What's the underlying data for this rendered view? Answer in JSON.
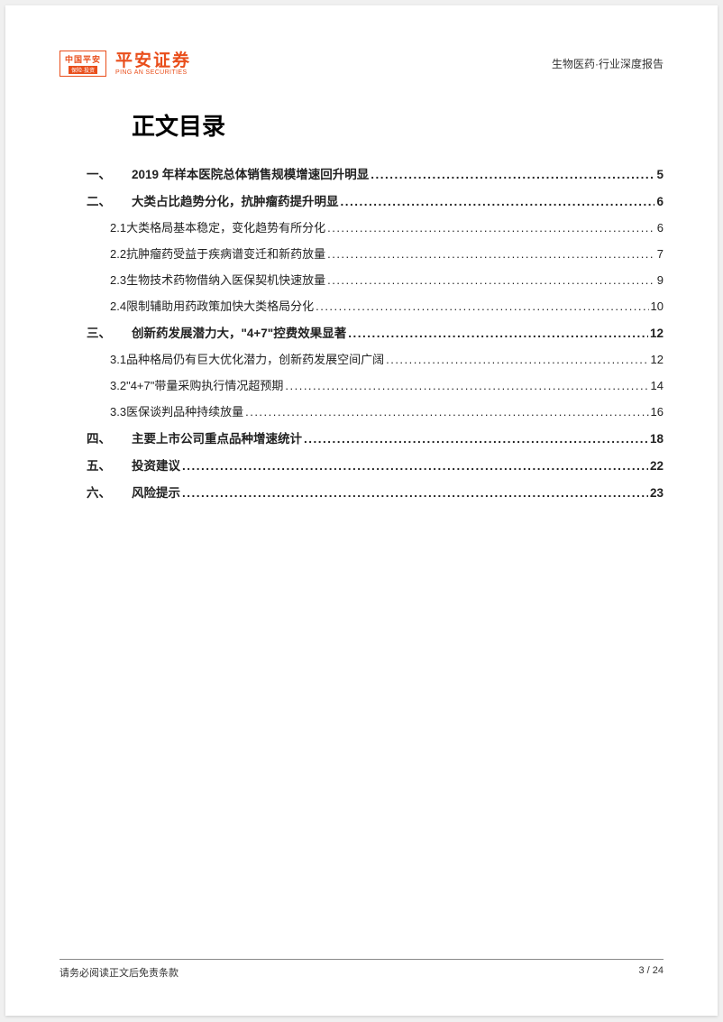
{
  "colors": {
    "brand_orange": "#e94e1b",
    "text_primary": "#222222",
    "text_header": "#333333",
    "background": "#ffffff",
    "divider": "#888888"
  },
  "header": {
    "logo_badge_top": "中国平安",
    "logo_badge_bot": "保险·投资",
    "logo_cn": "平安证券",
    "logo_en": "PING AN SECURITIES",
    "right_text": "生物医药·行业深度报告"
  },
  "title": "正文目录",
  "toc": [
    {
      "level": 1,
      "num": "一、",
      "label": "2019 年样本医院总体销售规模增速回升明显",
      "page": "5"
    },
    {
      "level": 1,
      "num": "二、",
      "label": "大类占比趋势分化，抗肿瘤药提升明显",
      "page": "6"
    },
    {
      "level": 2,
      "num": "2.1",
      "label": "大类格局基本稳定，变化趋势有所分化",
      "page": "6"
    },
    {
      "level": 2,
      "num": "2.2",
      "label": "抗肿瘤药受益于疾病谱变迁和新药放量",
      "page": "7"
    },
    {
      "level": 2,
      "num": "2.3",
      "label": "生物技术药物借纳入医保契机快速放量",
      "page": "9"
    },
    {
      "level": 2,
      "num": "2.4",
      "label": "限制辅助用药政策加快大类格局分化",
      "page": "10"
    },
    {
      "level": 1,
      "num": "三、",
      "label": "创新药发展潜力大，\"4+7\"控费效果显著",
      "page": "12"
    },
    {
      "level": 2,
      "num": "3.1",
      "label": "品种格局仍有巨大优化潜力，创新药发展空间广阔",
      "page": "12"
    },
    {
      "level": 2,
      "num": "3.2",
      "label": "\"4+7\"带量采购执行情况超预期",
      "page": "14"
    },
    {
      "level": 2,
      "num": "3.3",
      "label": "医保谈判品种持续放量",
      "page": "16"
    },
    {
      "level": 1,
      "num": "四、",
      "label": "主要上市公司重点品种增速统计",
      "page": "18"
    },
    {
      "level": 1,
      "num": "五、",
      "label": "投资建议",
      "page": "22"
    },
    {
      "level": 1,
      "num": "六、",
      "label": "风险提示",
      "page": "23"
    }
  ],
  "footer": {
    "left": "请务必阅读正文后免责条款",
    "right": "3 / 24"
  }
}
